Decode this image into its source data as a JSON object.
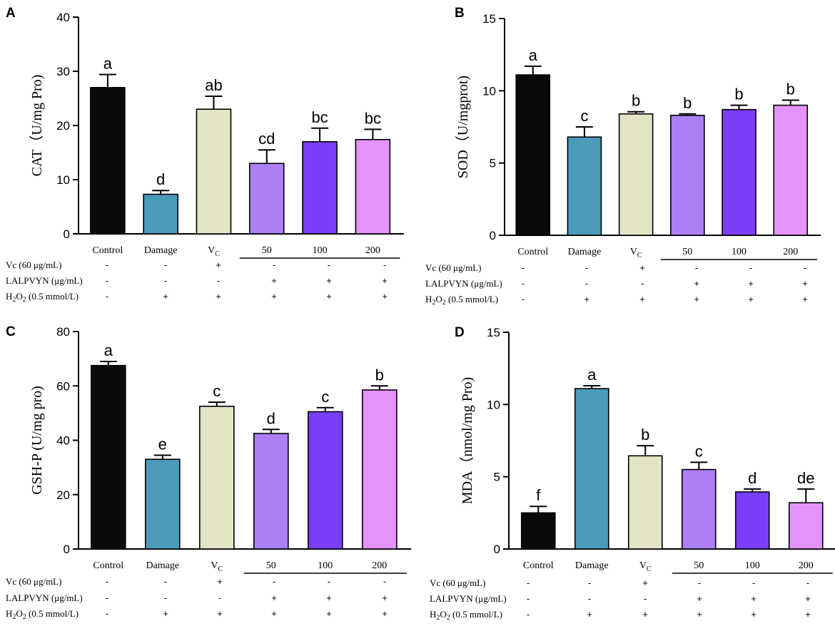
{
  "figure": {
    "categories": [
      "Control",
      "Damage",
      "V",
      "50",
      "100",
      "200"
    ],
    "vc_subscript": "C",
    "colors": [
      "#0a0a0a",
      "#4a9bb8",
      "#e2e4c4",
      "#ad7ff7",
      "#7a3ef8",
      "#e593fc"
    ],
    "treatments": [
      {
        "label": "Vc (60 μg/mL)",
        "signs": [
          "-",
          "-",
          "+",
          "-",
          "-",
          "-"
        ]
      },
      {
        "label": "LALPVYN (μg/mL)",
        "signs": [
          "-",
          "-",
          "-",
          "+",
          "+",
          "+"
        ]
      },
      {
        "label_main": "H",
        "label_sub": "2",
        "label_mid": "O",
        "label_sub2": "2",
        "label_rest": " (0.5 mmol/L)",
        "signs": [
          "-",
          "+",
          "+",
          "+",
          "+",
          "+"
        ]
      }
    ]
  },
  "chart_data": [
    {
      "panel": "A",
      "type": "bar",
      "ylabel": "CAT（U/mg Pro)",
      "ylim": [
        0,
        40
      ],
      "yticks": [
        0,
        10,
        20,
        30,
        40
      ],
      "values": [
        27.0,
        7.3,
        23.0,
        13.0,
        17.0,
        17.4
      ],
      "errors": [
        2.4,
        0.7,
        2.4,
        2.5,
        2.5,
        1.9
      ],
      "letters": [
        "a",
        "d",
        "ab",
        "cd",
        "bc",
        "bc"
      ]
    },
    {
      "panel": "B",
      "type": "bar",
      "ylabel": "SOD（U/mgprot)",
      "ylim": [
        0,
        15
      ],
      "yticks": [
        0,
        5,
        10,
        15
      ],
      "values": [
        11.1,
        6.8,
        8.4,
        8.3,
        8.7,
        9.0
      ],
      "errors": [
        0.6,
        0.7,
        0.15,
        0.1,
        0.3,
        0.35
      ],
      "letters": [
        "a",
        "c",
        "b",
        "b",
        "b",
        "b"
      ]
    },
    {
      "panel": "C",
      "type": "bar",
      "ylabel": "GSH-P (U/mg pro)",
      "ylim": [
        0,
        80
      ],
      "yticks": [
        0,
        20,
        40,
        60,
        80
      ],
      "values": [
        67.5,
        33.0,
        52.5,
        42.5,
        50.5,
        58.5
      ],
      "errors": [
        1.5,
        1.5,
        1.5,
        1.5,
        1.5,
        1.5
      ],
      "letters": [
        "a",
        "e",
        "c",
        "d",
        "c",
        "b"
      ]
    },
    {
      "panel": "D",
      "type": "bar",
      "ylabel": "MDA（nmol/mg Pro)",
      "ylim": [
        0,
        15
      ],
      "yticks": [
        0,
        5,
        10,
        15
      ],
      "values": [
        2.5,
        11.1,
        6.45,
        5.5,
        3.95,
        3.2
      ],
      "errors": [
        0.45,
        0.2,
        0.7,
        0.5,
        0.2,
        0.95
      ],
      "letters": [
        "f",
        "a",
        "b",
        "c",
        "d",
        "de"
      ]
    }
  ]
}
